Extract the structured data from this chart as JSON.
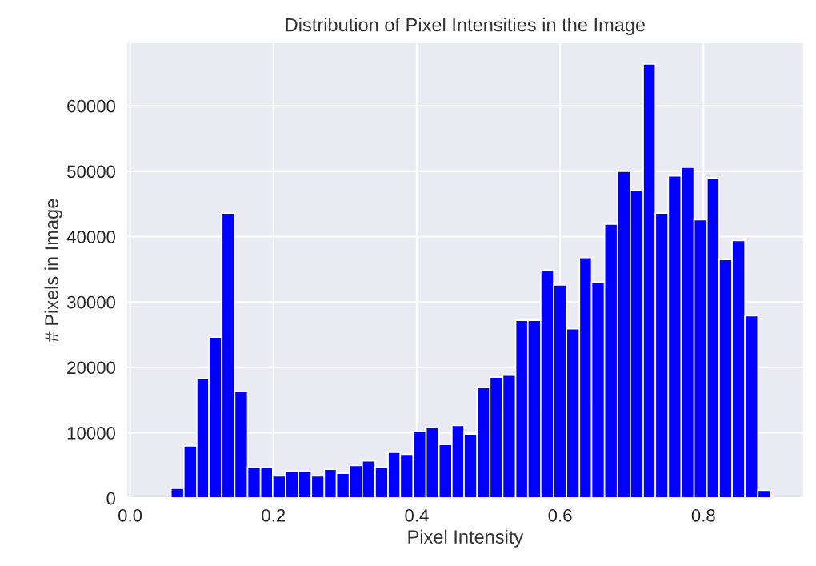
{
  "chart_data": {
    "type": "histogram",
    "title": "Distribution of Pixel Intensities in the Image",
    "xlabel": "Pixel Intensity",
    "ylabel": "# Pixels in Image",
    "color": "#0000ff",
    "bins": [
      0.057,
      0.075,
      0.093,
      0.11,
      0.128,
      0.146,
      0.164,
      0.182,
      0.199,
      0.217,
      0.235,
      0.253,
      0.271,
      0.288,
      0.306,
      0.324,
      0.342,
      0.36,
      0.377,
      0.395,
      0.413,
      0.431,
      0.449,
      0.466,
      0.484,
      0.502,
      0.52,
      0.538,
      0.555,
      0.573,
      0.591,
      0.609,
      0.627,
      0.644,
      0.662,
      0.68,
      0.698,
      0.716,
      0.733,
      0.751,
      0.769,
      0.787,
      0.805,
      0.822,
      0.84,
      0.858,
      0.876,
      0.894
    ],
    "values": [
      1500,
      8000,
      18300,
      24600,
      43600,
      16300,
      4700,
      4700,
      3400,
      4100,
      4100,
      3400,
      4400,
      3800,
      5000,
      5700,
      4700,
      7000,
      6700,
      10200,
      10800,
      8200,
      11100,
      9800,
      16900,
      18500,
      18800,
      27200,
      27200,
      34900,
      32600,
      25900,
      36800,
      33000,
      41900,
      50000,
      47100,
      66400,
      43600,
      49300,
      50600,
      42600,
      49000,
      36500,
      39400,
      27900,
      1200
    ],
    "xlim": [
      -0.005,
      0.94
    ],
    "ylim": [
      0,
      69700
    ],
    "xticks": [
      {
        "value": 0,
        "label": "0.0"
      },
      {
        "value": 0.2,
        "label": "0.2"
      },
      {
        "value": 0.4,
        "label": "0.4"
      },
      {
        "value": 0.6,
        "label": "0.6"
      },
      {
        "value": 0.8,
        "label": "0.8"
      }
    ],
    "yticks": [
      0,
      10000,
      20000,
      30000,
      40000,
      50000,
      60000
    ],
    "grid": true
  }
}
